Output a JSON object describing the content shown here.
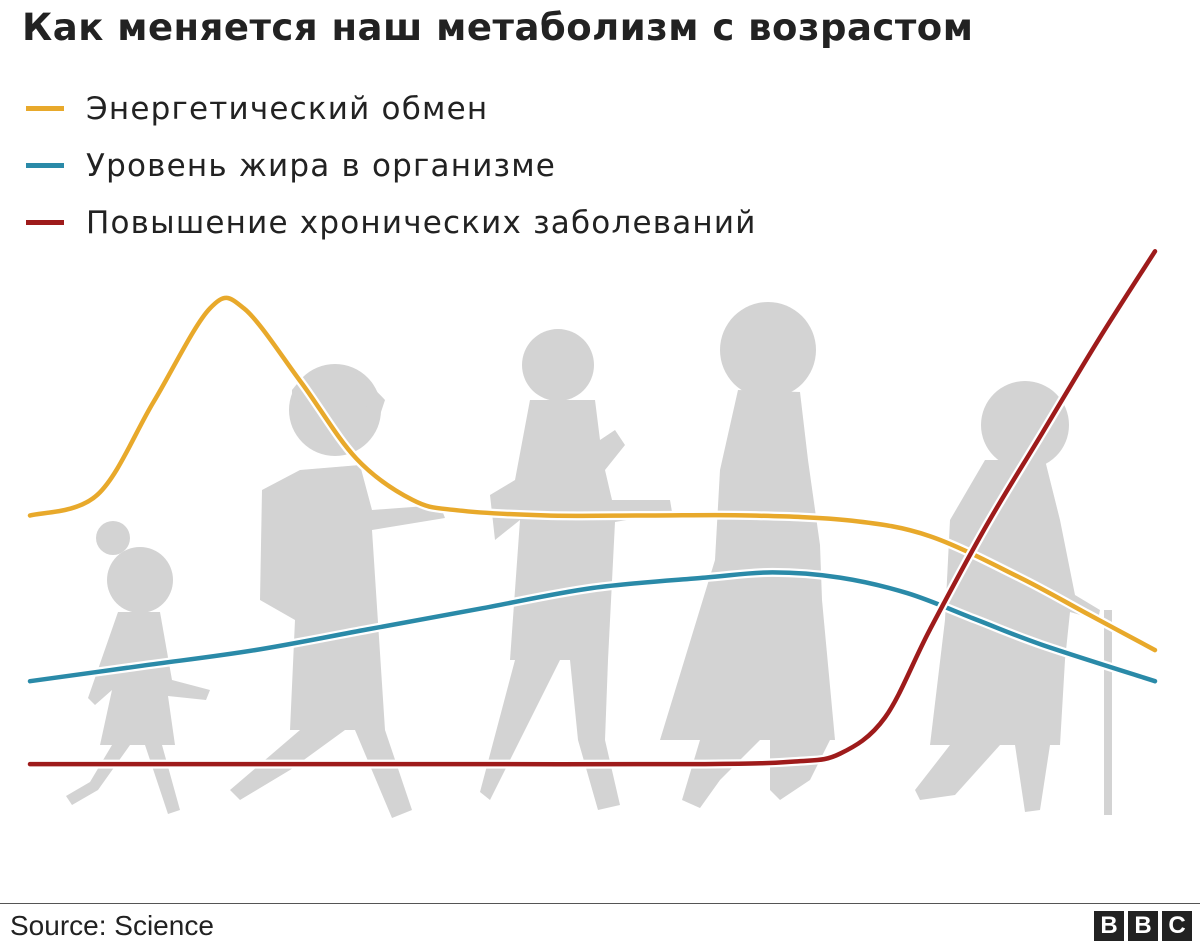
{
  "title": "Как меняется наш метаболизм с возрастом",
  "legend": [
    {
      "label": "Энергетический обмен",
      "color": "#e8a92b"
    },
    {
      "label": "Уровень жира в организме",
      "color": "#2a8aa8"
    },
    {
      "label": "Повышение хронических заболеваний",
      "color": "#9e1b1b"
    }
  ],
  "source": "Source: Science",
  "logo": [
    "B",
    "B",
    "C"
  ],
  "chart_data": {
    "type": "line",
    "xlabel": "",
    "ylabel": "",
    "grid": false,
    "legend_position": "top-left",
    "xlim": [
      0,
      100
    ],
    "ylim": [
      0,
      100
    ],
    "series": [
      {
        "name": "Энергетический обмен",
        "color": "#e8a92b",
        "x": [
          0,
          6,
          11,
          16,
          19,
          24,
          29,
          34,
          38,
          46,
          55,
          64,
          73,
          80,
          88,
          94,
          100
        ],
        "y": [
          53,
          57,
          75,
          93,
          93,
          79,
          64,
          56,
          54,
          53,
          53,
          53,
          52,
          49,
          41,
          34,
          27
        ]
      },
      {
        "name": "Уровень жира в организме",
        "color": "#2a8aa8",
        "x": [
          0,
          10,
          20,
          30,
          40,
          50,
          60,
          66,
          72,
          78,
          84,
          90,
          100
        ],
        "y": [
          21,
          24,
          27,
          31,
          35,
          39,
          41,
          42,
          41,
          38,
          33,
          28,
          21
        ]
      },
      {
        "name": "Повышение хронических заболеваний",
        "color": "#9e1b1b",
        "x": [
          0,
          20,
          40,
          60,
          68,
          72,
          76,
          80,
          85,
          90,
          95,
          100
        ],
        "y": [
          5,
          5,
          5,
          5,
          5.5,
          7,
          14,
          31,
          51,
          69,
          87,
          104
        ]
      }
    ]
  }
}
